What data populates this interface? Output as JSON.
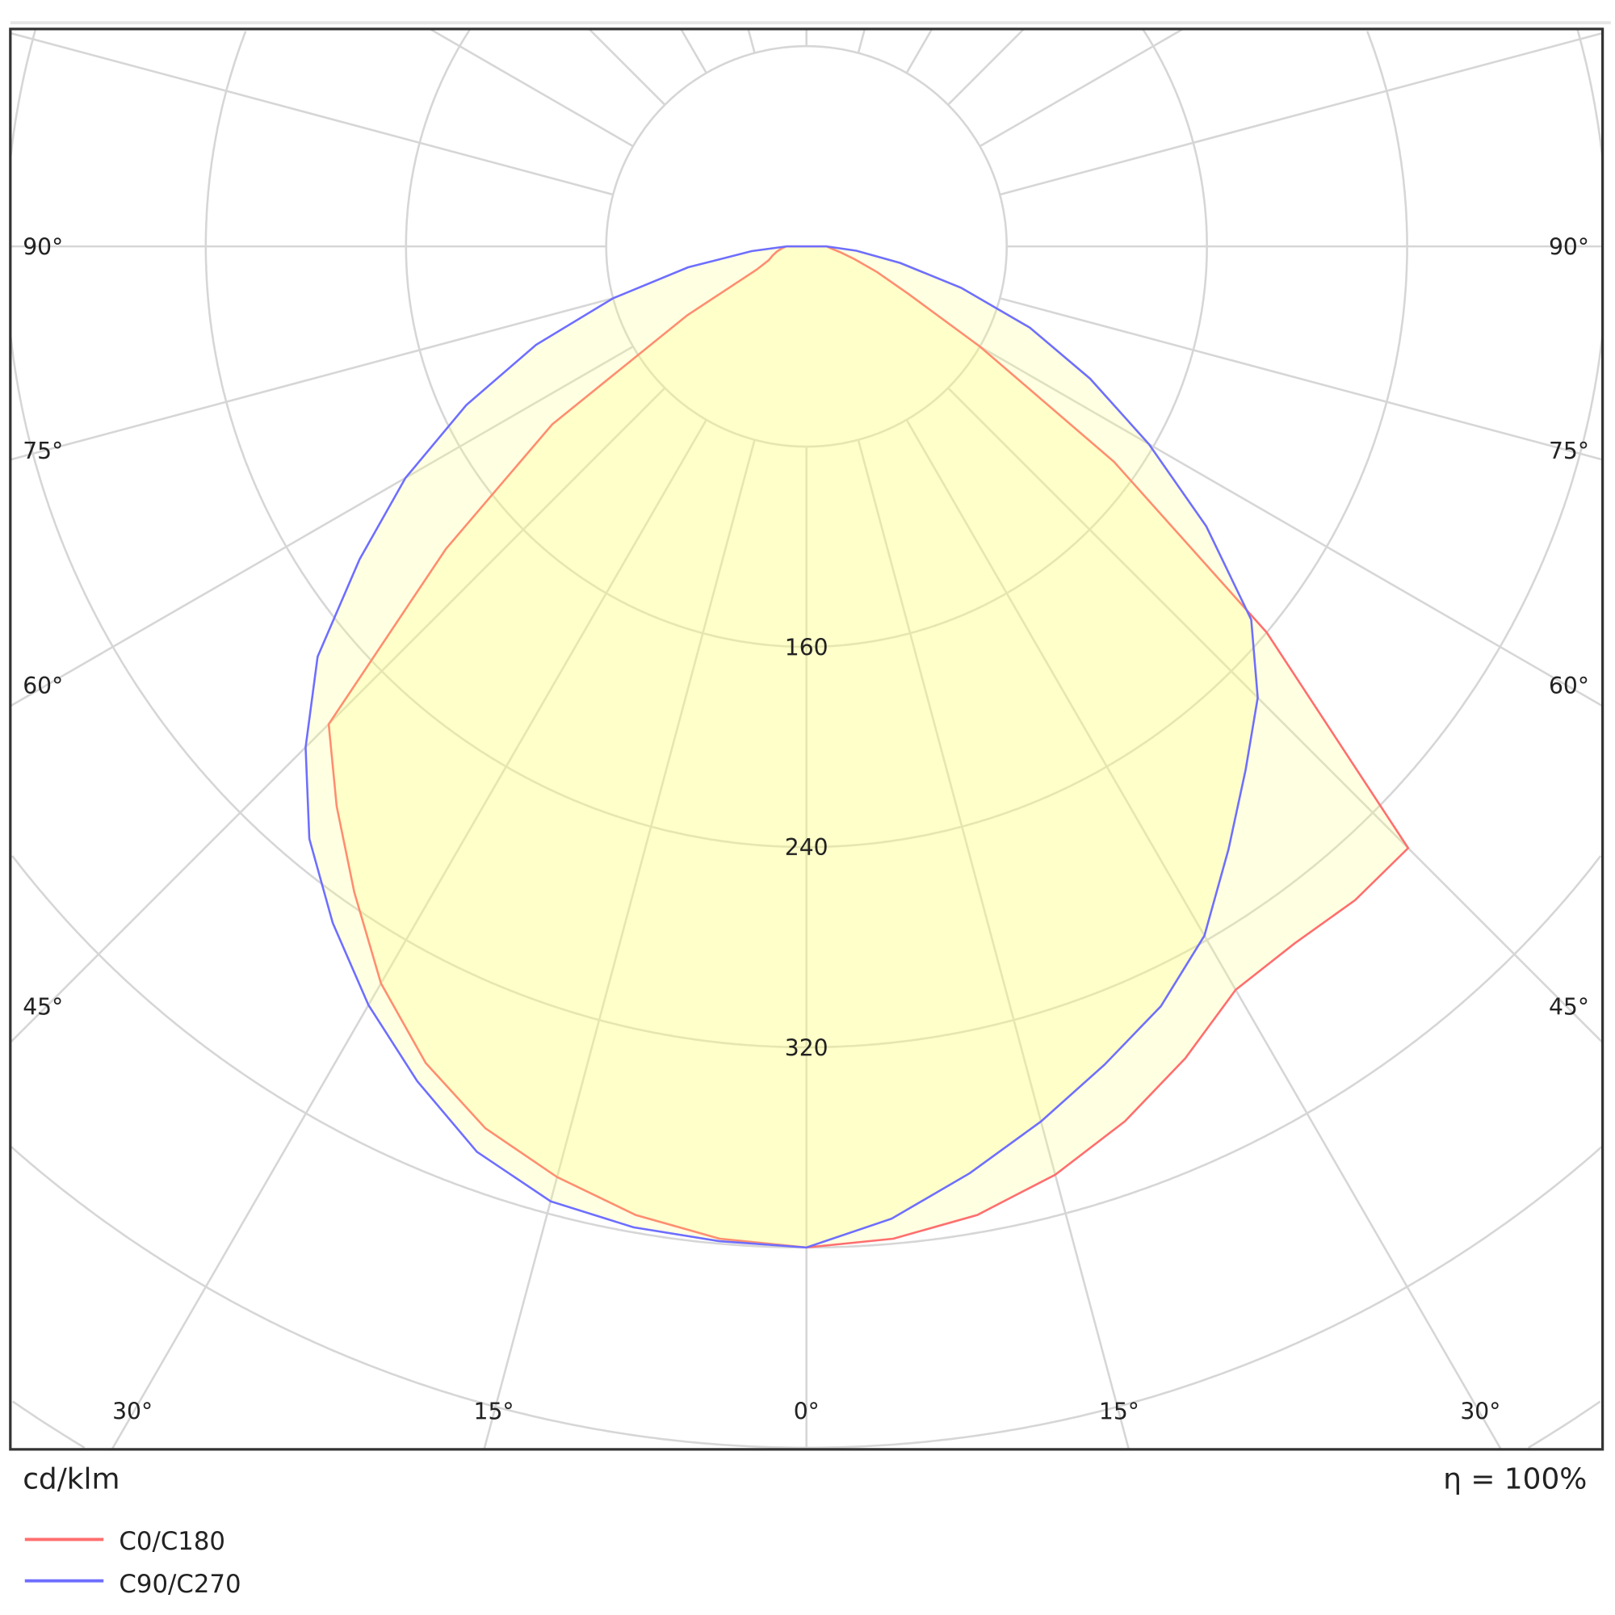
{
  "chart_data": {
    "type": "polar",
    "title": "",
    "unit_label": "cd/klm",
    "efficiency_label": "η = 100%",
    "radial_ticks": [
      80,
      160,
      240,
      320,
      400,
      480,
      560,
      640,
      720,
      800
    ],
    "radial_tick_labels": [
      "160",
      "240",
      "320"
    ],
    "angle_labels_side": [
      "90°",
      "75°",
      "60°",
      "45°"
    ],
    "angle_labels_bottom": [
      "30°",
      "15°",
      "0°",
      "15°",
      "30°"
    ],
    "angles": [
      0,
      5,
      10,
      15,
      20,
      25,
      30,
      35,
      40,
      45,
      50,
      55,
      60,
      65,
      70,
      75,
      80,
      85,
      90
    ],
    "series": [
      {
        "name": "C0/C180",
        "color": "#ff6e6e",
        "c0": [
          400,
          398,
          393,
          384,
          372,
          358,
          343,
          340,
          341,
          340,
          240,
          150,
          80,
          45,
          30,
          20,
          14,
          10,
          8
        ],
        "c180": [
          400,
          398,
          393,
          385,
          375,
          360,
          340,
          315,
          292,
          270,
          188,
          124,
          55,
          22,
          16,
          14,
          12,
          10,
          8
        ]
      },
      {
        "name": "C90/C270",
        "color": "#6e6eff",
        "c0": [
          400,
          390,
          376,
          362,
          348,
          335,
          318,
          294,
          273,
          255,
          232,
          195,
          158,
          125,
          95,
          64,
          38,
          20,
          8
        ],
        "c180": [
          400,
          399,
          398,
          395,
          385,
          368,
          350,
          330,
          309,
          283,
          255,
          218,
          185,
          150,
          115,
          80,
          48,
          22,
          8
        ]
      }
    ]
  }
}
